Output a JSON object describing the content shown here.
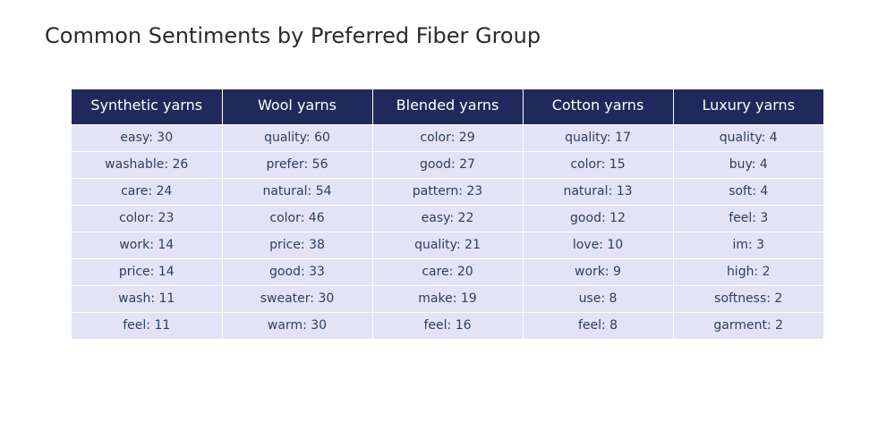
{
  "chart_data": {
    "type": "table",
    "title": "Common Sentiments by Preferred Fiber Group",
    "header_color": "#21295c",
    "cell_color": "#e3e3f7",
    "columns": [
      {
        "header": "Synthetic yarns",
        "cells": [
          "easy: 30",
          "washable: 26",
          "care: 24",
          "color: 23",
          "work: 14",
          "price: 14",
          "wash: 11",
          "feel: 11"
        ]
      },
      {
        "header": "Wool yarns",
        "cells": [
          "quality: 60",
          "prefer: 56",
          "natural: 54",
          "color: 46",
          "price: 38",
          "good: 33",
          "sweater: 30",
          "warm: 30"
        ]
      },
      {
        "header": "Blended yarns",
        "cells": [
          "color: 29",
          "good: 27",
          "pattern: 23",
          "easy: 22",
          "quality: 21",
          "care: 20",
          "make: 19",
          "feel: 16"
        ]
      },
      {
        "header": "Cotton yarns",
        "cells": [
          "quality: 17",
          "color: 15",
          "natural: 13",
          "good: 12",
          "love: 10",
          "work: 9",
          "use: 8",
          "feel: 8"
        ]
      },
      {
        "header": "Luxury yarns",
        "cells": [
          "quality: 4",
          "buy: 4",
          "soft: 4",
          "feel: 3",
          "im: 3",
          "high: 2",
          "softness: 2",
          "garment: 2"
        ]
      }
    ]
  }
}
